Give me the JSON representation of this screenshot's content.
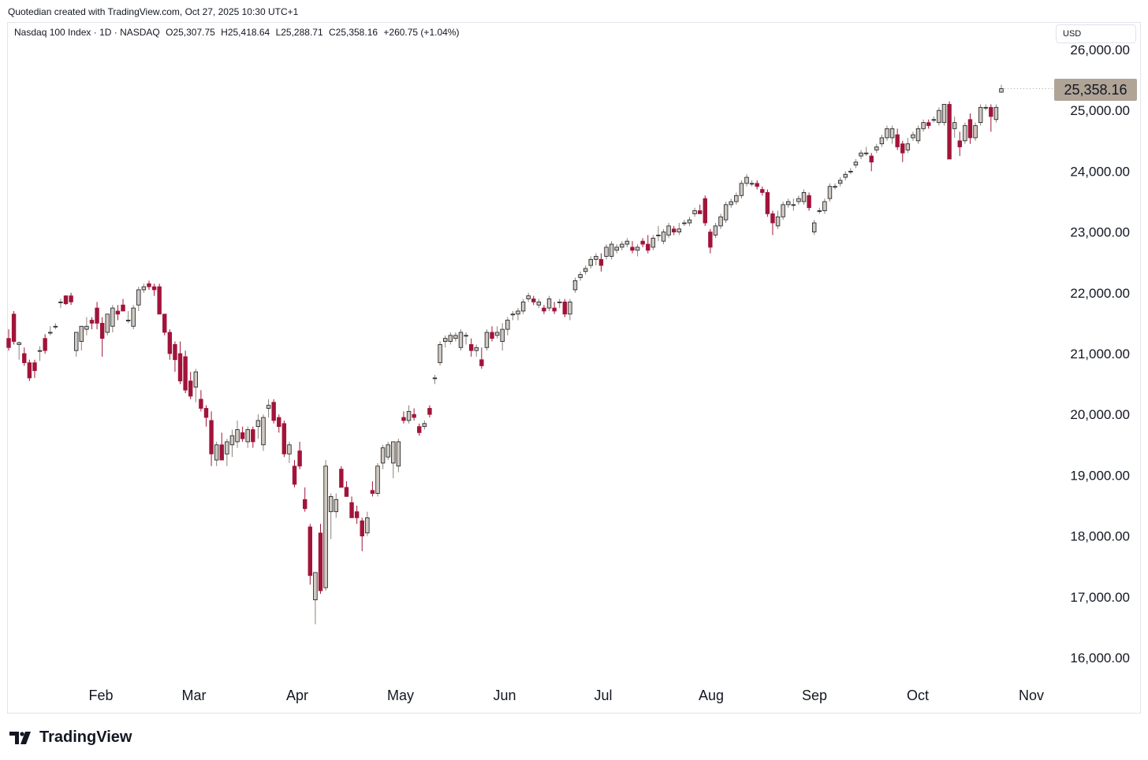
{
  "header": {
    "credit": "Quotedian created with TradingView.com, Oct 27, 2025 10:30 UTC+1"
  },
  "legend": {
    "symbol": "Nasdaq 100 Index · 1D · NASDAQ",
    "open": "O25,307.75",
    "high": "H25,418.64",
    "low": "L25,288.71",
    "close": "C25,358.16",
    "change": "+260.75 (+1.04%)"
  },
  "currency": "USD",
  "last_price_label": "25,358.16",
  "brand": {
    "name": "TradingView",
    "icon": "tradingview-logo-icon"
  },
  "colors": {
    "up": "#d1c9bf",
    "down": "#a1143a",
    "wick_up": "#8a8178",
    "wick_down": "#a1143a",
    "price_tag": "#b0a497"
  },
  "chart_data": {
    "type": "candlestick",
    "title": "Nasdaq 100 Index · 1D · NASDAQ",
    "ylim": [
      16000,
      26000
    ],
    "yticks": [
      "26,000.00",
      "25,000.00",
      "24,000.00",
      "23,000.00",
      "22,000.00",
      "21,000.00",
      "20,000.00",
      "19,000.00",
      "18,000.00",
      "17,000.00",
      "16,000.00"
    ],
    "xticks": [
      "Feb",
      "Mar",
      "Apr",
      "May",
      "Jun",
      "Jul",
      "Aug",
      "Sep",
      "Oct",
      "Nov"
    ],
    "grid": false,
    "last_price": 25358.16,
    "candles": [
      {
        "o": 21250,
        "h": 21400,
        "l": 21050,
        "c": 21100
      },
      {
        "o": 21650,
        "h": 21700,
        "l": 21150,
        "c": 21200
      },
      {
        "o": 21150,
        "h": 21200,
        "l": 20900,
        "c": 21180
      },
      {
        "o": 21000,
        "h": 21100,
        "l": 20800,
        "c": 20850
      },
      {
        "o": 20850,
        "h": 20900,
        "l": 20550,
        "c": 20600
      },
      {
        "o": 20850,
        "h": 20900,
        "l": 20600,
        "c": 20720
      },
      {
        "o": 21050,
        "h": 21120,
        "l": 20880,
        "c": 21050
      },
      {
        "o": 21250,
        "h": 21320,
        "l": 21000,
        "c": 21050
      },
      {
        "o": 21350,
        "h": 21450,
        "l": 21300,
        "c": 21350
      },
      {
        "o": 21450,
        "h": 21500,
        "l": 21400,
        "c": 21450
      },
      {
        "o": 21850,
        "h": 21900,
        "l": 21750,
        "c": 21850
      },
      {
        "o": 21950,
        "h": 21960,
        "l": 21800,
        "c": 21820
      },
      {
        "o": 21950,
        "h": 22000,
        "l": 21800,
        "c": 21850
      },
      {
        "o": 21050,
        "h": 21300,
        "l": 20950,
        "c": 21350
      },
      {
        "o": 21200,
        "h": 21400,
        "l": 21050,
        "c": 21450
      },
      {
        "o": 21400,
        "h": 21600,
        "l": 21300,
        "c": 21450
      },
      {
        "o": 21550,
        "h": 21600,
        "l": 21400,
        "c": 21500
      },
      {
        "o": 21750,
        "h": 21850,
        "l": 21400,
        "c": 21500
      },
      {
        "o": 21500,
        "h": 21600,
        "l": 20950,
        "c": 21250
      },
      {
        "o": 21350,
        "h": 21650,
        "l": 21300,
        "c": 21650
      },
      {
        "o": 21450,
        "h": 21800,
        "l": 21350,
        "c": 21750
      },
      {
        "o": 21700,
        "h": 21800,
        "l": 21550,
        "c": 21650
      },
      {
        "o": 21800,
        "h": 21900,
        "l": 21700,
        "c": 21700
      },
      {
        "o": 21550,
        "h": 21700,
        "l": 21500,
        "c": 21550
      },
      {
        "o": 21450,
        "h": 21800,
        "l": 21400,
        "c": 21750
      },
      {
        "o": 21800,
        "h": 22100,
        "l": 21700,
        "c": 22050
      },
      {
        "o": 22050,
        "h": 22150,
        "l": 22000,
        "c": 22100
      },
      {
        "o": 22150,
        "h": 22200,
        "l": 22050,
        "c": 22100
      },
      {
        "o": 22100,
        "h": 22150,
        "l": 21950,
        "c": 22050
      },
      {
        "o": 22100,
        "h": 22150,
        "l": 21650,
        "c": 21650
      },
      {
        "o": 21650,
        "h": 21650,
        "l": 21300,
        "c": 21350
      },
      {
        "o": 21350,
        "h": 21400,
        "l": 20900,
        "c": 21000
      },
      {
        "o": 21150,
        "h": 21200,
        "l": 20700,
        "c": 20900
      },
      {
        "o": 21000,
        "h": 21200,
        "l": 20500,
        "c": 20550
      },
      {
        "o": 20950,
        "h": 21050,
        "l": 20350,
        "c": 20400
      },
      {
        "o": 20550,
        "h": 20700,
        "l": 20250,
        "c": 20300
      },
      {
        "o": 20450,
        "h": 20750,
        "l": 20200,
        "c": 20700
      },
      {
        "o": 20250,
        "h": 20400,
        "l": 20050,
        "c": 20100
      },
      {
        "o": 20100,
        "h": 20150,
        "l": 19800,
        "c": 19950
      },
      {
        "o": 19900,
        "h": 20050,
        "l": 19150,
        "c": 19350
      },
      {
        "o": 19250,
        "h": 19550,
        "l": 19150,
        "c": 19500
      },
      {
        "o": 19500,
        "h": 19700,
        "l": 19250,
        "c": 19250
      },
      {
        "o": 19350,
        "h": 19600,
        "l": 19150,
        "c": 19550
      },
      {
        "o": 19500,
        "h": 19750,
        "l": 19300,
        "c": 19650
      },
      {
        "o": 19550,
        "h": 19900,
        "l": 19450,
        "c": 19750
      },
      {
        "o": 19700,
        "h": 19800,
        "l": 19550,
        "c": 19600
      },
      {
        "o": 19550,
        "h": 19800,
        "l": 19450,
        "c": 19750
      },
      {
        "o": 19750,
        "h": 19800,
        "l": 19450,
        "c": 19550
      },
      {
        "o": 19800,
        "h": 20000,
        "l": 19600,
        "c": 19900
      },
      {
        "o": 19500,
        "h": 20000,
        "l": 19400,
        "c": 19950
      },
      {
        "o": 20100,
        "h": 20250,
        "l": 19950,
        "c": 20150
      },
      {
        "o": 20200,
        "h": 20250,
        "l": 19850,
        "c": 19900
      },
      {
        "o": 19950,
        "h": 20000,
        "l": 19700,
        "c": 19800
      },
      {
        "o": 19850,
        "h": 19900,
        "l": 19300,
        "c": 19350
      },
      {
        "o": 19350,
        "h": 19550,
        "l": 19200,
        "c": 19500
      },
      {
        "o": 19150,
        "h": 19250,
        "l": 18800,
        "c": 18850
      },
      {
        "o": 19400,
        "h": 19550,
        "l": 19100,
        "c": 19150
      },
      {
        "o": 18600,
        "h": 18800,
        "l": 18400,
        "c": 18450
      },
      {
        "o": 18150,
        "h": 18200,
        "l": 17200,
        "c": 17350
      },
      {
        "o": 16950,
        "h": 17400,
        "l": 16550,
        "c": 17400
      },
      {
        "o": 18050,
        "h": 18200,
        "l": 17050,
        "c": 17100
      },
      {
        "o": 17150,
        "h": 19250,
        "l": 17100,
        "c": 19150
      },
      {
        "o": 18400,
        "h": 18700,
        "l": 17950,
        "c": 18650
      },
      {
        "o": 18400,
        "h": 18700,
        "l": 18300,
        "c": 18600
      },
      {
        "o": 19100,
        "h": 19150,
        "l": 18800,
        "c": 18800
      },
      {
        "o": 18800,
        "h": 18900,
        "l": 18650,
        "c": 18650
      },
      {
        "o": 18550,
        "h": 18650,
        "l": 18300,
        "c": 18300
      },
      {
        "o": 18400,
        "h": 18500,
        "l": 18200,
        "c": 18300
      },
      {
        "o": 18250,
        "h": 18300,
        "l": 17750,
        "c": 18000
      },
      {
        "o": 18050,
        "h": 18400,
        "l": 18000,
        "c": 18300
      },
      {
        "o": 18750,
        "h": 18900,
        "l": 18650,
        "c": 18700
      },
      {
        "o": 18700,
        "h": 19200,
        "l": 18650,
        "c": 19150
      },
      {
        "o": 19200,
        "h": 19500,
        "l": 19100,
        "c": 19450
      },
      {
        "o": 19300,
        "h": 19550,
        "l": 19250,
        "c": 19500
      },
      {
        "o": 19200,
        "h": 19550,
        "l": 18950,
        "c": 19550
      },
      {
        "o": 19150,
        "h": 19600,
        "l": 19050,
        "c": 19550
      },
      {
        "o": 19950,
        "h": 20050,
        "l": 19850,
        "c": 19900
      },
      {
        "o": 19900,
        "h": 20150,
        "l": 19850,
        "c": 20050
      },
      {
        "o": 20000,
        "h": 20100,
        "l": 19900,
        "c": 19950
      },
      {
        "o": 19800,
        "h": 19850,
        "l": 19650,
        "c": 19700
      },
      {
        "o": 19800,
        "h": 19900,
        "l": 19750,
        "c": 19850
      },
      {
        "o": 20100,
        "h": 20150,
        "l": 19950,
        "c": 20000
      },
      {
        "o": 20600,
        "h": 20650,
        "l": 20500,
        "c": 20600
      },
      {
        "o": 20850,
        "h": 21200,
        "l": 20800,
        "c": 21150
      },
      {
        "o": 21200,
        "h": 21300,
        "l": 21100,
        "c": 21250
      },
      {
        "o": 21200,
        "h": 21350,
        "l": 21150,
        "c": 21300
      },
      {
        "o": 21250,
        "h": 21350,
        "l": 21200,
        "c": 21300
      },
      {
        "o": 21100,
        "h": 21400,
        "l": 21050,
        "c": 21350
      },
      {
        "o": 21300,
        "h": 21350,
        "l": 21150,
        "c": 21300
      },
      {
        "o": 21150,
        "h": 21250,
        "l": 20950,
        "c": 21050
      },
      {
        "o": 21050,
        "h": 21150,
        "l": 20950,
        "c": 21100
      },
      {
        "o": 20900,
        "h": 21100,
        "l": 20750,
        "c": 20800
      },
      {
        "o": 21100,
        "h": 21400,
        "l": 21050,
        "c": 21350
      },
      {
        "o": 21350,
        "h": 21450,
        "l": 21200,
        "c": 21250
      },
      {
        "o": 21300,
        "h": 21450,
        "l": 21250,
        "c": 21350
      },
      {
        "o": 21200,
        "h": 21500,
        "l": 21050,
        "c": 21400
      },
      {
        "o": 21400,
        "h": 21600,
        "l": 21300,
        "c": 21550
      },
      {
        "o": 21650,
        "h": 21700,
        "l": 21550,
        "c": 21650
      },
      {
        "o": 21650,
        "h": 21750,
        "l": 21550,
        "c": 21700
      },
      {
        "o": 21700,
        "h": 21900,
        "l": 21650,
        "c": 21850
      },
      {
        "o": 21900,
        "h": 22000,
        "l": 21850,
        "c": 21950
      },
      {
        "o": 21900,
        "h": 21950,
        "l": 21800,
        "c": 21850
      },
      {
        "o": 21800,
        "h": 21900,
        "l": 21750,
        "c": 21850
      },
      {
        "o": 21750,
        "h": 21800,
        "l": 21650,
        "c": 21700
      },
      {
        "o": 21750,
        "h": 21950,
        "l": 21700,
        "c": 21900
      },
      {
        "o": 21750,
        "h": 21850,
        "l": 21650,
        "c": 21700
      },
      {
        "o": 21850,
        "h": 21900,
        "l": 21750,
        "c": 21850
      },
      {
        "o": 21850,
        "h": 21900,
        "l": 21600,
        "c": 21650
      },
      {
        "o": 21650,
        "h": 21900,
        "l": 21550,
        "c": 21850
      },
      {
        "o": 22050,
        "h": 22250,
        "l": 22000,
        "c": 22200
      },
      {
        "o": 22250,
        "h": 22350,
        "l": 22200,
        "c": 22300
      },
      {
        "o": 22350,
        "h": 22450,
        "l": 22300,
        "c": 22400
      },
      {
        "o": 22450,
        "h": 22600,
        "l": 22400,
        "c": 22550
      },
      {
        "o": 22550,
        "h": 22650,
        "l": 22450,
        "c": 22600
      },
      {
        "o": 22550,
        "h": 22650,
        "l": 22350,
        "c": 22450
      },
      {
        "o": 22600,
        "h": 22800,
        "l": 22550,
        "c": 22750
      },
      {
        "o": 22600,
        "h": 22850,
        "l": 22550,
        "c": 22800
      },
      {
        "o": 22700,
        "h": 22800,
        "l": 22650,
        "c": 22750
      },
      {
        "o": 22750,
        "h": 22850,
        "l": 22700,
        "c": 22800
      },
      {
        "o": 22800,
        "h": 22900,
        "l": 22750,
        "c": 22850
      },
      {
        "o": 22750,
        "h": 22850,
        "l": 22650,
        "c": 22700
      },
      {
        "o": 22700,
        "h": 22800,
        "l": 22600,
        "c": 22750
      },
      {
        "o": 22850,
        "h": 22900,
        "l": 22750,
        "c": 22800
      },
      {
        "o": 22800,
        "h": 22950,
        "l": 22650,
        "c": 22700
      },
      {
        "o": 22750,
        "h": 22950,
        "l": 22700,
        "c": 22900
      },
      {
        "o": 22950,
        "h": 23100,
        "l": 22850,
        "c": 22950
      },
      {
        "o": 22850,
        "h": 23050,
        "l": 22800,
        "c": 23000
      },
      {
        "o": 22950,
        "h": 23150,
        "l": 22900,
        "c": 23100
      },
      {
        "o": 23050,
        "h": 23100,
        "l": 22950,
        "c": 23000
      },
      {
        "o": 23000,
        "h": 23150,
        "l": 22950,
        "c": 23050
      },
      {
        "o": 23150,
        "h": 23200,
        "l": 23100,
        "c": 23150
      },
      {
        "o": 23150,
        "h": 23250,
        "l": 23100,
        "c": 23200
      },
      {
        "o": 23300,
        "h": 23400,
        "l": 23250,
        "c": 23350
      },
      {
        "o": 23350,
        "h": 23450,
        "l": 23300,
        "c": 23300
      },
      {
        "o": 23550,
        "h": 23600,
        "l": 23100,
        "c": 23150
      },
      {
        "o": 23000,
        "h": 23050,
        "l": 22650,
        "c": 22750
      },
      {
        "o": 22950,
        "h": 23150,
        "l": 22900,
        "c": 23100
      },
      {
        "o": 23100,
        "h": 23300,
        "l": 23050,
        "c": 23250
      },
      {
        "o": 23200,
        "h": 23500,
        "l": 23150,
        "c": 23450
      },
      {
        "o": 23450,
        "h": 23550,
        "l": 23400,
        "c": 23500
      },
      {
        "o": 23500,
        "h": 23650,
        "l": 23450,
        "c": 23600
      },
      {
        "o": 23600,
        "h": 23850,
        "l": 23550,
        "c": 23800
      },
      {
        "o": 23800,
        "h": 23950,
        "l": 23750,
        "c": 23900
      },
      {
        "o": 23800,
        "h": 23850,
        "l": 23750,
        "c": 23800
      },
      {
        "o": 23800,
        "h": 23850,
        "l": 23700,
        "c": 23750
      },
      {
        "o": 23700,
        "h": 23750,
        "l": 23600,
        "c": 23650
      },
      {
        "o": 23650,
        "h": 23700,
        "l": 23250,
        "c": 23300
      },
      {
        "o": 23300,
        "h": 23350,
        "l": 22950,
        "c": 23150
      },
      {
        "o": 23100,
        "h": 23350,
        "l": 23050,
        "c": 23250
      },
      {
        "o": 23250,
        "h": 23500,
        "l": 23200,
        "c": 23450
      },
      {
        "o": 23450,
        "h": 23550,
        "l": 23400,
        "c": 23500
      },
      {
        "o": 23450,
        "h": 23550,
        "l": 23350,
        "c": 23450
      },
      {
        "o": 23500,
        "h": 23600,
        "l": 23450,
        "c": 23550
      },
      {
        "o": 23500,
        "h": 23700,
        "l": 23450,
        "c": 23650
      },
      {
        "o": 23600,
        "h": 23650,
        "l": 23350,
        "c": 23400
      },
      {
        "o": 23000,
        "h": 23200,
        "l": 22950,
        "c": 23150
      },
      {
        "o": 23350,
        "h": 23400,
        "l": 23300,
        "c": 23350
      },
      {
        "o": 23350,
        "h": 23550,
        "l": 23300,
        "c": 23500
      },
      {
        "o": 23550,
        "h": 23800,
        "l": 23500,
        "c": 23750
      },
      {
        "o": 23750,
        "h": 23800,
        "l": 23700,
        "c": 23750
      },
      {
        "o": 23800,
        "h": 23900,
        "l": 23750,
        "c": 23850
      },
      {
        "o": 23900,
        "h": 24000,
        "l": 23850,
        "c": 23950
      },
      {
        "o": 24000,
        "h": 24050,
        "l": 23950,
        "c": 24000
      },
      {
        "o": 24100,
        "h": 24200,
        "l": 24050,
        "c": 24150
      },
      {
        "o": 24250,
        "h": 24350,
        "l": 24200,
        "c": 24300
      },
      {
        "o": 24300,
        "h": 24400,
        "l": 24250,
        "c": 24300
      },
      {
        "o": 24250,
        "h": 24300,
        "l": 24000,
        "c": 24150
      },
      {
        "o": 24350,
        "h": 24450,
        "l": 24300,
        "c": 24400
      },
      {
        "o": 24450,
        "h": 24600,
        "l": 24400,
        "c": 24550
      },
      {
        "o": 24550,
        "h": 24750,
        "l": 24500,
        "c": 24700
      },
      {
        "o": 24550,
        "h": 24750,
        "l": 24450,
        "c": 24700
      },
      {
        "o": 24600,
        "h": 24700,
        "l": 24350,
        "c": 24400
      },
      {
        "o": 24450,
        "h": 24500,
        "l": 24150,
        "c": 24300
      },
      {
        "o": 24350,
        "h": 24550,
        "l": 24300,
        "c": 24450
      },
      {
        "o": 24550,
        "h": 24650,
        "l": 24500,
        "c": 24600
      },
      {
        "o": 24500,
        "h": 24750,
        "l": 24450,
        "c": 24700
      },
      {
        "o": 24700,
        "h": 24850,
        "l": 24650,
        "c": 24800
      },
      {
        "o": 24800,
        "h": 24850,
        "l": 24700,
        "c": 24750
      },
      {
        "o": 24850,
        "h": 24900,
        "l": 24800,
        "c": 24850
      },
      {
        "o": 24800,
        "h": 25050,
        "l": 24750,
        "c": 25000
      },
      {
        "o": 24800,
        "h": 25100,
        "l": 24750,
        "c": 25100
      },
      {
        "o": 25100,
        "h": 25150,
        "l": 24200,
        "c": 24200
      },
      {
        "o": 24700,
        "h": 24900,
        "l": 24550,
        "c": 24800
      },
      {
        "o": 24500,
        "h": 24650,
        "l": 24250,
        "c": 24400
      },
      {
        "o": 24500,
        "h": 24800,
        "l": 24450,
        "c": 24750
      },
      {
        "o": 24850,
        "h": 24950,
        "l": 24450,
        "c": 24550
      },
      {
        "o": 24550,
        "h": 24800,
        "l": 24500,
        "c": 24750
      },
      {
        "o": 24800,
        "h": 25100,
        "l": 24750,
        "c": 25050
      },
      {
        "o": 25050,
        "h": 25100,
        "l": 25000,
        "c": 25050
      },
      {
        "o": 25050,
        "h": 25100,
        "l": 24650,
        "c": 24900
      },
      {
        "o": 24850,
        "h": 25100,
        "l": 24800,
        "c": 25050
      },
      {
        "o": 25300,
        "h": 25420,
        "l": 25290,
        "c": 25358
      }
    ]
  }
}
